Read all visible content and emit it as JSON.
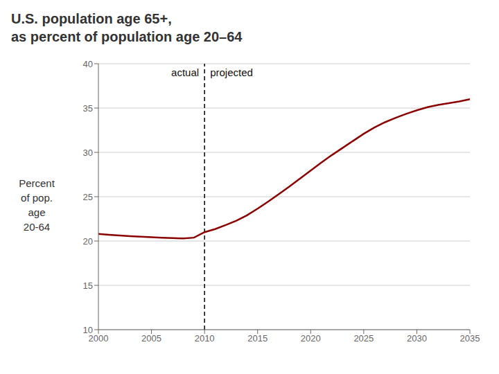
{
  "chart_data": {
    "type": "line",
    "title": "U.S. population age 65+,\nas percent of population age 20–64",
    "ylabel": "Percent\nof pop.\nage\n20-64",
    "x": [
      2000,
      2001,
      2002,
      2003,
      2004,
      2005,
      2006,
      2007,
      2008,
      2009,
      2010,
      2011,
      2012,
      2013,
      2014,
      2015,
      2016,
      2017,
      2018,
      2019,
      2020,
      2021,
      2022,
      2023,
      2024,
      2025,
      2026,
      2027,
      2028,
      2029,
      2030,
      2031,
      2032,
      2033,
      2034,
      2035
    ],
    "values": [
      20.8,
      20.7,
      20.62,
      20.55,
      20.48,
      20.43,
      20.38,
      20.33,
      20.3,
      20.38,
      21.0,
      21.35,
      21.8,
      22.3,
      22.9,
      23.65,
      24.45,
      25.3,
      26.15,
      27.05,
      27.95,
      28.85,
      29.7,
      30.5,
      31.3,
      32.1,
      32.8,
      33.4,
      33.9,
      34.35,
      34.75,
      35.1,
      35.35,
      35.55,
      35.75,
      36.0
    ],
    "color": "#8b0000",
    "xlim": [
      2000,
      2035
    ],
    "ylim": [
      10,
      40
    ],
    "xticks": [
      2000,
      2005,
      2010,
      2015,
      2020,
      2025,
      2030,
      2035
    ],
    "yticks": [
      10,
      15,
      20,
      25,
      30,
      35,
      40
    ],
    "grid": true,
    "vlines": [
      {
        "x": 2010,
        "line_style": "dashed",
        "annotations": [
          {
            "text": "actual",
            "side": "left"
          },
          {
            "text": "projected",
            "side": "right"
          }
        ]
      }
    ]
  }
}
